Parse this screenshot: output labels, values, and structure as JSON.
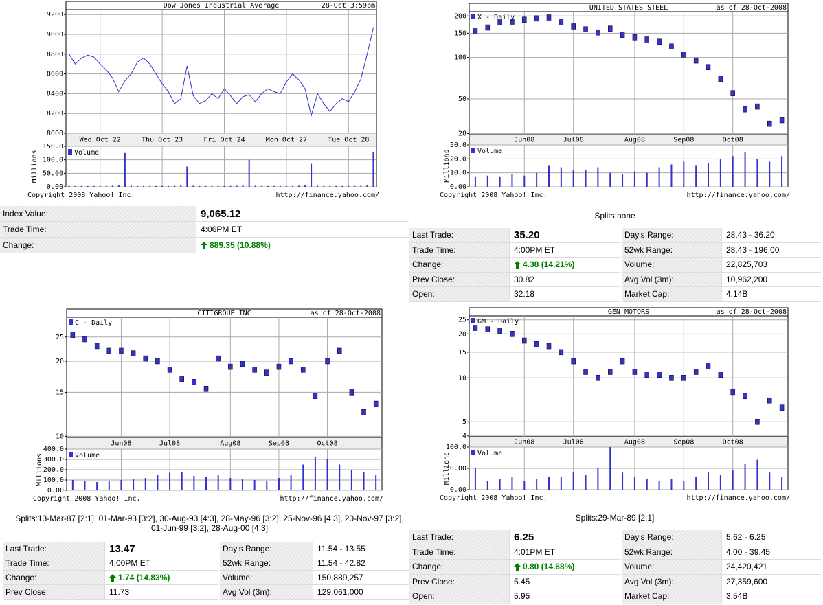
{
  "chart_data": [
    {
      "type": "line",
      "title": "Dow Jones Industrial Average",
      "subtitle": "28-Oct 3:59pm",
      "categories": [
        null,
        null,
        null,
        null,
        null,
        "Wed Oct 22",
        null,
        null,
        null,
        null,
        null,
        null,
        null,
        null,
        null,
        "Thu Oct 23",
        null,
        null,
        null,
        null,
        null,
        null,
        null,
        null,
        null,
        "Fri Oct 24",
        null,
        null,
        null,
        null,
        null,
        null,
        null,
        null,
        null,
        "Mon Oct 27",
        null,
        null,
        null,
        null,
        null,
        null,
        null,
        null,
        null,
        "Tue Oct 28",
        null,
        null,
        null,
        null
      ],
      "series": [
        {
          "color": "#3333cc",
          "values": [
            8800,
            8700,
            8760,
            8790,
            8770,
            8700,
            8640,
            8560,
            8420,
            8530,
            8600,
            8720,
            8760,
            8700,
            8600,
            8500,
            8420,
            8300,
            8350,
            8680,
            8380,
            8300,
            8330,
            8400,
            8350,
            8450,
            8380,
            8300,
            8370,
            8390,
            8320,
            8400,
            8450,
            8420,
            8400,
            8520,
            8600,
            8540,
            8450,
            8180,
            8400,
            8300,
            8220,
            8300,
            8350,
            8320,
            8420,
            8550,
            8800,
            9065
          ]
        }
      ],
      "ylim": [
        8000,
        9250
      ],
      "yticks": [
        8000,
        8200,
        8400,
        8600,
        8800,
        9000,
        9200
      ],
      "log_scale": false,
      "volume": {
        "ylabel": "Millions",
        "ylim": [
          0,
          150
        ],
        "yticks": [
          {
            "value": 0,
            "label": "0.00"
          },
          {
            "value": 50,
            "label": "50.00"
          },
          {
            "value": 100,
            "label": "100.0"
          },
          {
            "value": 150,
            "label": "150.0"
          }
        ],
        "series": [
          {
            "name": "Volume",
            "color": "#3333cc",
            "values": [
              4,
              3,
              3,
              3,
              3,
              3,
              3,
              4,
              6,
              125,
              4,
              3,
              3,
              3,
              3,
              3,
              3,
              4,
              6,
              75,
              4,
              3,
              3,
              3,
              3,
              3,
              3,
              4,
              6,
              100,
              4,
              3,
              3,
              3,
              3,
              3,
              3,
              4,
              6,
              85,
              4,
              3,
              3,
              3,
              3,
              3,
              3,
              4,
              6,
              130
            ]
          }
        ]
      },
      "copyright": "Copyright 2008 Yahoo! Inc.",
      "url": "http://finance.yahoo.com/"
    },
    {
      "type": "point",
      "title": "UNITED STATES STEEL",
      "subtitle": "as of 28-Oct-2008",
      "categories": [
        null,
        null,
        null,
        null,
        "Jun08",
        null,
        null,
        null,
        "Jul08",
        null,
        null,
        null,
        null,
        "Aug08",
        null,
        null,
        null,
        "Sep08",
        null,
        null,
        null,
        "Oct08",
        null,
        null,
        null,
        null
      ],
      "series": [
        {
          "name": "X - Daily",
          "color": "#3333cc",
          "values": [
            155,
            165,
            180,
            182,
            188,
            192,
            195,
            180,
            168,
            160,
            152,
            162,
            146,
            140,
            135,
            130,
            120,
            105,
            95,
            85,
            70,
            55,
            42,
            44,
            33,
            35
          ]
        }
      ],
      "ylim": [
        27.5,
        215
      ],
      "yticks": [
        28,
        50,
        100,
        150,
        200
      ],
      "log_scale": true,
      "volume": {
        "ylabel": "Millions",
        "ylim": [
          0,
          30
        ],
        "yticks": [
          {
            "value": 0,
            "label": "0.00"
          },
          {
            "value": 10,
            "label": "10.0"
          },
          {
            "value": 20,
            "label": "20.0"
          },
          {
            "value": 30,
            "label": "30.0"
          }
        ],
        "series": [
          {
            "name": "Volume",
            "color": "#3333cc",
            "values": [
              7,
              8,
              7,
              9,
              8,
              10,
              15,
              14,
              12,
              12,
              14,
              10,
              9,
              11,
              10,
              14,
              16,
              18,
              15,
              17,
              20,
              22,
              25,
              20,
              18,
              22
            ]
          }
        ]
      },
      "copyright": "Copyright 2008 Yahoo! Inc.",
      "url": "http://finance.yahoo.com/"
    },
    {
      "type": "point",
      "title": "CITIGROUP INC",
      "subtitle": "as of 28-Oct-2008",
      "categories": [
        null,
        null,
        null,
        null,
        "Jun08",
        null,
        null,
        null,
        "Jul08",
        null,
        null,
        null,
        null,
        "Aug08",
        null,
        null,
        null,
        "Sep08",
        null,
        null,
        null,
        "Oct08",
        null,
        null,
        null,
        null
      ],
      "series": [
        {
          "name": "C - Daily",
          "color": "#3333cc",
          "values": [
            25.5,
            24.5,
            23,
            22,
            22,
            21.5,
            20.5,
            20,
            18.5,
            17,
            16.5,
            15.5,
            20.5,
            19,
            19.5,
            18.5,
            18,
            19,
            20,
            18.5,
            14.5,
            20,
            22,
            15,
            12.5,
            13.5
          ]
        }
      ],
      "ylim": [
        9.9,
        30
      ],
      "yticks": [
        10,
        15,
        20,
        25
      ],
      "log_scale": true,
      "volume": {
        "ylabel": "Millions",
        "ylim": [
          0,
          400
        ],
        "yticks": [
          {
            "value": 0,
            "label": "0.00"
          },
          {
            "value": 100,
            "label": "100.0"
          },
          {
            "value": 200,
            "label": "200.0"
          },
          {
            "value": 300,
            "label": "300.0"
          },
          {
            "value": 400,
            "label": "400.0"
          }
        ],
        "series": [
          {
            "name": "Volume",
            "color": "#3333cc",
            "values": [
              100,
              90,
              80,
              90,
              100,
              110,
              120,
              150,
              170,
              180,
              140,
              130,
              150,
              120,
              110,
              100,
              90,
              120,
              150,
              250,
              320,
              300,
              250,
              200,
              180,
              150
            ]
          }
        ]
      },
      "copyright": "Copyright 2008 Yahoo! Inc.",
      "url": "http://finance.yahoo.com/"
    },
    {
      "type": "point",
      "title": "GEN MOTORS",
      "subtitle": "as of 28-Oct-2008",
      "categories": [
        null,
        null,
        null,
        null,
        "Jun08",
        null,
        null,
        null,
        "Jul08",
        null,
        null,
        null,
        null,
        "Aug08",
        null,
        null,
        null,
        "Sep08",
        null,
        null,
        null,
        "Oct08",
        null,
        null,
        null,
        null
      ],
      "series": [
        {
          "name": "GM - Daily",
          "color": "#3333cc",
          "values": [
            22,
            21.5,
            21,
            20,
            18,
            17,
            16.5,
            15,
            13,
            11,
            10,
            11,
            13,
            11,
            10.5,
            10.5,
            10,
            10,
            11,
            12,
            10.5,
            8,
            7.5,
            5,
            7,
            6.25
          ]
        }
      ],
      "ylim": [
        3.95,
        26.6
      ],
      "yticks": [
        4,
        5,
        10,
        15,
        20,
        25
      ],
      "log_scale": true,
      "volume": {
        "ylabel": "Millions",
        "ylim": [
          0,
          100
        ],
        "yticks": [
          {
            "value": 0,
            "label": "0.00"
          },
          {
            "value": 50,
            "label": "50.00"
          },
          {
            "value": 100,
            "label": "100.0"
          }
        ],
        "series": [
          {
            "name": "Volume",
            "color": "#3333cc",
            "values": [
              50,
              20,
              25,
              30,
              20,
              25,
              30,
              30,
              40,
              35,
              50,
              100,
              40,
              30,
              25,
              20,
              25,
              20,
              30,
              40,
              35,
              45,
              60,
              70,
              40,
              30
            ]
          }
        ]
      },
      "copyright": "Copyright 2008 Yahoo! Inc.",
      "url": "http://finance.yahoo.com/"
    }
  ],
  "quotes": [
    {
      "left": [
        [
          "Index Value:",
          "9,065.12"
        ],
        [
          "Trade Time:",
          "4:06PM ET"
        ],
        [
          "Change:",
          "889.35 (10.88%)"
        ]
      ]
    },
    {
      "splits": "Splits:none",
      "left": [
        [
          "Last Trade:",
          "35.20"
        ],
        [
          "Trade Time:",
          "4:00PM ET"
        ],
        [
          "Change:",
          "4.38 (14.21%)"
        ],
        [
          "Prev Close:",
          "30.82"
        ],
        [
          "Open:",
          "32.18"
        ]
      ],
      "right": [
        [
          "Day's Range:",
          "28.43 - 36.20"
        ],
        [
          "52wk Range:",
          "28.43 - 196.00"
        ],
        [
          "Volume:",
          "22,825,703"
        ],
        [
          "Avg Vol (3m):",
          "10,962,200"
        ],
        [
          "Market Cap:",
          "4.14B"
        ]
      ]
    },
    {
      "splits": "Splits:13-Mar-87 [2:1], 01-Mar-93 [3:2], 30-Aug-93 [4:3], 28-May-96 [3:2], 25-Nov-96 [4:3], 20-Nov-97 [3:2], 01-Jun-99 [3:2], 28-Aug-00 [4:3]",
      "left": [
        [
          "Last Trade:",
          "13.47"
        ],
        [
          "Trade Time:",
          "4:00PM ET"
        ],
        [
          "Change:",
          "1.74 (14.83%)"
        ],
        [
          "Prev Close:",
          "11.73"
        ]
      ],
      "right": [
        [
          "Day's Range:",
          "11.54 - 13.55"
        ],
        [
          "52wk Range:",
          "11.54 - 42.82"
        ],
        [
          "Volume:",
          "150,889,257"
        ],
        [
          "Avg Vol (3m):",
          "129,061,000"
        ]
      ]
    },
    {
      "splits": "Splits:29-Mar-89 [2:1]",
      "left": [
        [
          "Last Trade:",
          "6.25"
        ],
        [
          "Trade Time:",
          "4:01PM ET"
        ],
        [
          "Change:",
          "0.80 (14.68%)"
        ],
        [
          "Prev Close:",
          "5.45"
        ],
        [
          "Open:",
          "5.95"
        ]
      ],
      "right": [
        [
          "Day's Range:",
          "5.62 - 6.25"
        ],
        [
          "52wk Range:",
          "4.00 - 39.45"
        ],
        [
          "Volume:",
          "24,420,421"
        ],
        [
          "Avg Vol (3m):",
          "27,359,600"
        ],
        [
          "Market Cap:",
          "3.54B"
        ]
      ]
    }
  ]
}
